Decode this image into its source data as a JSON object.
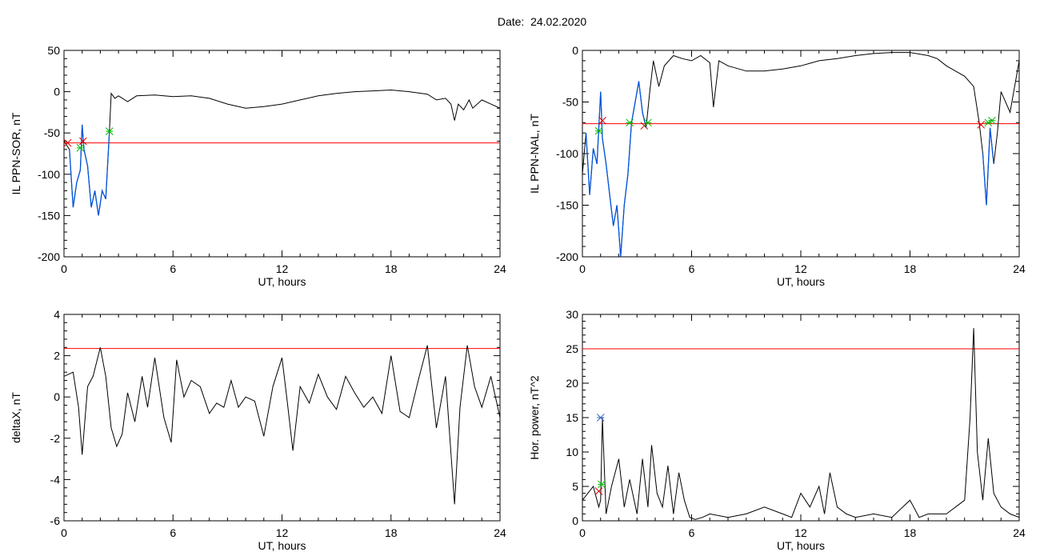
{
  "page": {
    "title": "Date:  24.02.2020"
  },
  "colors": {
    "trace": "#000000",
    "threshold": "#ff0000",
    "highlight": "#0055dd",
    "marker_green": "#00bb00",
    "marker_red": "#dd0000",
    "marker_blue": "#3366cc"
  },
  "chart_data": [
    {
      "type": "line",
      "xlabel": "UT, hours",
      "ylabel": "IL PPN-SOR, nT",
      "xlim": [
        0,
        24
      ],
      "ylim": [
        -200,
        50
      ],
      "xticks": [
        0,
        6,
        12,
        18,
        24
      ],
      "yticks": [
        50,
        0,
        -50,
        -100,
        -150,
        -200
      ],
      "x": [
        0,
        0.3,
        0.5,
        0.7,
        0.9,
        1.0,
        1.1,
        1.3,
        1.5,
        1.7,
        1.9,
        2.1,
        2.3,
        2.5,
        2.6,
        2.8,
        3.0,
        3.5,
        4,
        5,
        6,
        7,
        8,
        9,
        10,
        11,
        12,
        13,
        14,
        15,
        16,
        17,
        18,
        19,
        20,
        20.5,
        21,
        21.3,
        21.5,
        21.7,
        22,
        22.3,
        22.5,
        23,
        23.5,
        24
      ],
      "values": [
        -60,
        -70,
        -140,
        -110,
        -95,
        -40,
        -70,
        -90,
        -140,
        -120,
        -150,
        -120,
        -130,
        -48,
        -2,
        -8,
        -5,
        -12,
        -5,
        -4,
        -6,
        -5,
        -8,
        -15,
        -20,
        -18,
        -15,
        -10,
        -5,
        -2,
        0,
        1,
        2,
        0,
        -3,
        -10,
        -8,
        -15,
        -35,
        -15,
        -22,
        -10,
        -20,
        -10,
        -15,
        -20
      ],
      "highlight_range": [
        0.3,
        2.5
      ],
      "threshold": -62,
      "markers": [
        {
          "x": 0.2,
          "y": -62,
          "color": "red"
        },
        {
          "x": 0.9,
          "y": -68,
          "color": "green"
        },
        {
          "x": 1.05,
          "y": -60,
          "color": "red"
        },
        {
          "x": 2.5,
          "y": -48,
          "color": "green"
        }
      ]
    },
    {
      "type": "line",
      "xlabel": "UT, hours",
      "ylabel": "IL PPN-NAL, nT",
      "xlim": [
        0,
        24
      ],
      "ylim": [
        -200,
        0
      ],
      "xticks": [
        0,
        6,
        12,
        18,
        24
      ],
      "yticks": [
        0,
        -50,
        -100,
        -150,
        -200
      ],
      "x": [
        0,
        0.2,
        0.4,
        0.6,
        0.8,
        1.0,
        1.1,
        1.3,
        1.5,
        1.7,
        1.9,
        2.1,
        2.3,
        2.5,
        2.7,
        2.9,
        3.1,
        3.3,
        3.5,
        3.7,
        3.9,
        4.2,
        4.5,
        5,
        5.5,
        6,
        6.5,
        7,
        7.2,
        7.5,
        8,
        9,
        10,
        11,
        12,
        13,
        14,
        15,
        16,
        17,
        18,
        19,
        19.5,
        20,
        20.5,
        21,
        21.5,
        21.8,
        22,
        22.2,
        22.4,
        22.6,
        22.8,
        23,
        23.5,
        24
      ],
      "values": [
        -120,
        -80,
        -140,
        -95,
        -110,
        -40,
        -85,
        -110,
        -140,
        -170,
        -150,
        -200,
        -150,
        -120,
        -70,
        -50,
        -30,
        -60,
        -75,
        -40,
        -10,
        -35,
        -15,
        -5,
        -8,
        -10,
        -5,
        -12,
        -55,
        -10,
        -15,
        -20,
        -20,
        -18,
        -15,
        -10,
        -8,
        -5,
        -3,
        -2,
        -2,
        -5,
        -8,
        -15,
        -20,
        -25,
        -35,
        -70,
        -100,
        -150,
        -75,
        -110,
        -80,
        -40,
        -60,
        -10
      ],
      "highlight_ranges": [
        [
          0.2,
          3.5
        ],
        [
          21.9,
          22.6
        ]
      ],
      "threshold": -71,
      "markers": [
        {
          "x": 0.9,
          "y": -78,
          "color": "green"
        },
        {
          "x": 1.1,
          "y": -68,
          "color": "red"
        },
        {
          "x": 2.6,
          "y": -70,
          "color": "green"
        },
        {
          "x": 3.4,
          "y": -73,
          "color": "red"
        },
        {
          "x": 3.6,
          "y": -70,
          "color": "green"
        },
        {
          "x": 21.9,
          "y": -72,
          "color": "red"
        },
        {
          "x": 22.3,
          "y": -70,
          "color": "green"
        },
        {
          "x": 22.5,
          "y": -68,
          "color": "green"
        }
      ]
    },
    {
      "type": "line",
      "xlabel": "UT, hours",
      "ylabel": "deltaX, nT",
      "xlim": [
        0,
        24
      ],
      "ylim": [
        -6,
        4
      ],
      "xticks": [
        0,
        6,
        12,
        18,
        24
      ],
      "yticks": [
        4,
        2,
        0,
        -2,
        -4,
        -6
      ],
      "x": [
        0,
        0.5,
        0.8,
        1.0,
        1.3,
        1.6,
        2.0,
        2.3,
        2.6,
        2.9,
        3.2,
        3.5,
        3.9,
        4.3,
        4.6,
        5.0,
        5.5,
        5.9,
        6.2,
        6.6,
        7.0,
        7.5,
        8.0,
        8.4,
        8.8,
        9.2,
        9.6,
        10,
        10.5,
        11,
        11.5,
        12,
        12.3,
        12.6,
        13,
        13.5,
        14,
        14.5,
        15,
        15.5,
        16,
        16.5,
        17,
        17.5,
        18,
        18.5,
        19,
        19.5,
        20,
        20.5,
        21,
        21.5,
        21.8,
        22.2,
        22.6,
        23,
        23.5,
        24
      ],
      "values": [
        1.0,
        1.2,
        -0.5,
        -2.8,
        0.5,
        1.0,
        2.4,
        1.0,
        -1.5,
        -2.4,
        -1.8,
        0.2,
        -1.2,
        1.0,
        -0.5,
        1.9,
        -1.0,
        -2.2,
        1.8,
        0.0,
        0.8,
        0.5,
        -0.8,
        -0.3,
        -0.5,
        0.8,
        -0.5,
        0.0,
        -0.2,
        -1.9,
        0.5,
        1.9,
        -0.3,
        -2.6,
        0.5,
        -0.3,
        1.1,
        0.0,
        -0.6,
        1.0,
        0.2,
        -0.5,
        0.0,
        -0.8,
        2.0,
        -0.7,
        -1.0,
        0.8,
        2.5,
        -1.5,
        1.0,
        -5.2,
        -0.5,
        2.5,
        0.5,
        -0.5,
        1.0,
        -1.0
      ],
      "threshold": 2.35
    },
    {
      "type": "line",
      "xlabel": "UT, hours",
      "ylabel": "Hor. power, nT^2",
      "xlim": [
        0,
        24
      ],
      "ylim": [
        0,
        30
      ],
      "xticks": [
        0,
        6,
        12,
        18,
        24
      ],
      "yticks": [
        30,
        25,
        20,
        15,
        10,
        5,
        0
      ],
      "x": [
        0,
        0.3,
        0.6,
        0.9,
        1.0,
        1.1,
        1.3,
        1.6,
        2.0,
        2.3,
        2.6,
        3.0,
        3.3,
        3.6,
        3.8,
        4.1,
        4.4,
        4.7,
        5.0,
        5.3,
        5.6,
        5.9,
        6.2,
        6.6,
        7,
        8,
        9,
        10,
        11,
        11.5,
        12,
        12.5,
        13,
        13.3,
        13.6,
        14,
        14.5,
        15,
        16,
        17,
        18,
        18.5,
        19,
        20,
        20.5,
        21,
        21.3,
        21.5,
        21.7,
        22,
        22.3,
        22.6,
        23,
        23.5,
        24
      ],
      "values": [
        3,
        4,
        5,
        2,
        3,
        15,
        1,
        5,
        9,
        2,
        6,
        1,
        9,
        2,
        11,
        4,
        2,
        8,
        1,
        7,
        3,
        0.5,
        0.2,
        0.5,
        1,
        0.5,
        1,
        2,
        1,
        0.5,
        4,
        2,
        5,
        1,
        7,
        2,
        1,
        0.5,
        1,
        0.5,
        3,
        0.5,
        1,
        1,
        2,
        3,
        15,
        28,
        10,
        3,
        12,
        4,
        2,
        1,
        0.5
      ],
      "threshold": 25,
      "markers": [
        {
          "x": 0.9,
          "y": 4.3,
          "color": "red"
        },
        {
          "x": 1.05,
          "y": 5.3,
          "color": "green"
        },
        {
          "x": 1.0,
          "y": 15,
          "color": "blue"
        }
      ]
    }
  ]
}
